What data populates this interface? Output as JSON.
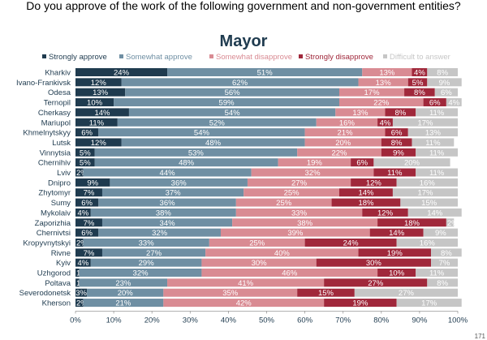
{
  "question": "Do you approve of the work of the following government and non-government entities?",
  "page_number": "171",
  "colors": {
    "strongly_approve": "#1f3b4f",
    "somewhat_approve": "#6f8fa3",
    "somewhat_disapprove": "#d98b93",
    "strongly_disapprove": "#a0283b",
    "difficult": "#c6c6c6"
  },
  "chart_data": {
    "type": "bar",
    "orientation": "horizontal",
    "stacked": true,
    "title": "Mayor",
    "categories": [
      "Kharkiv",
      "Ivano-Frankivsk",
      "Odesa",
      "Ternopil",
      "Cherkasy",
      "Mariupol",
      "Khmelnytskyy",
      "Lutsk",
      "Vinnytsia",
      "Chernihiv",
      "Lviv",
      "Dnipro",
      "Zhytomyr",
      "Sumy",
      "Mykolaiv",
      "Zaporizhia",
      "Chernivtsi",
      "Kropyvnytskyi",
      "Rivne",
      "Kyiv",
      "Uzhgorod",
      "Poltava",
      "Severodonetsk",
      "Kherson"
    ],
    "series": [
      {
        "name": "Strongly approve",
        "color": "#1f3b4f",
        "label_color": "#ffffff",
        "values": [
          24,
          12,
          13,
          10,
          14,
          11,
          6,
          12,
          5,
          5,
          2,
          9,
          7,
          6,
          4,
          7,
          6,
          2,
          7,
          4,
          1,
          1,
          3,
          2
        ]
      },
      {
        "name": "Somewhat approve",
        "color": "#6f8fa3",
        "label_color": "#ffffff",
        "values": [
          51,
          62,
          56,
          59,
          54,
          52,
          54,
          48,
          53,
          48,
          44,
          36,
          37,
          36,
          38,
          34,
          32,
          33,
          27,
          29,
          32,
          23,
          20,
          21
        ]
      },
      {
        "name": "Somewhat disapprove",
        "color": "#d98b93",
        "label_color": "#ffffff",
        "values": [
          13,
          13,
          17,
          22,
          13,
          16,
          21,
          20,
          22,
          19,
          32,
          27,
          25,
          25,
          33,
          38,
          39,
          25,
          40,
          30,
          46,
          41,
          35,
          42
        ]
      },
      {
        "name": "Strongly disapprove",
        "color": "#a0283b",
        "label_color": "#ffffff",
        "values": [
          4,
          5,
          8,
          6,
          8,
          4,
          6,
          8,
          9,
          6,
          11,
          12,
          14,
          18,
          12,
          18,
          14,
          24,
          19,
          30,
          10,
          27,
          15,
          19
        ]
      },
      {
        "name": "Difficult to answer",
        "color": "#c6c6c6",
        "label_color": "#ffffff",
        "values": [
          8,
          9,
          6,
          4,
          11,
          17,
          13,
          11,
          11,
          20,
          11,
          16,
          17,
          15,
          14,
          2,
          9,
          16,
          8,
          7,
          11,
          8,
          27,
          17
        ]
      }
    ],
    "value_suffix": "%",
    "x_ticks": [
      "0%",
      "10%",
      "20%",
      "30%",
      "40%",
      "50%",
      "60%",
      "70%",
      "80%",
      "90%",
      "100%"
    ],
    "xlim": [
      0,
      100
    ],
    "legend_position": "top",
    "grid": false
  }
}
